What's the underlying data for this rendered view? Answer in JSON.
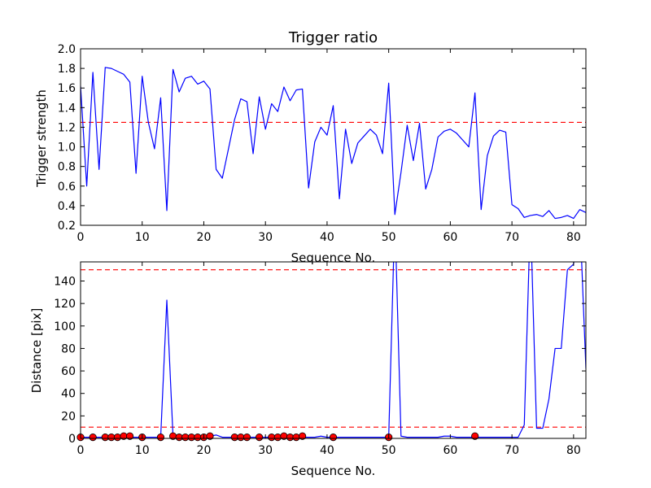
{
  "chart_data": [
    {
      "type": "line",
      "title": "Trigger ratio",
      "xlabel": "Sequence No.",
      "ylabel": "Trigger strength",
      "xlim": [
        0,
        82
      ],
      "ylim": [
        0.2,
        2.0
      ],
      "xticks": [
        0,
        10,
        20,
        30,
        40,
        50,
        60,
        70,
        80
      ],
      "yticks": [
        0.2,
        0.4,
        0.6,
        0.8,
        1.0,
        1.2,
        1.4,
        1.6,
        1.8,
        2.0
      ],
      "xtick_labels": [
        "0",
        "10",
        "20",
        "30",
        "40",
        "50",
        "60",
        "70",
        "80"
      ],
      "ytick_labels": [
        "0.2",
        "0.4",
        "0.6",
        "0.8",
        "1.0",
        "1.2",
        "1.4",
        "1.6",
        "1.8",
        "2.0"
      ],
      "grid": false,
      "series": [
        {
          "color": "#0000ff",
          "x": [
            0,
            1,
            2,
            3,
            4,
            5,
            6,
            7,
            8,
            9,
            10,
            11,
            12,
            13,
            14,
            15,
            16,
            17,
            18,
            19,
            20,
            21,
            22,
            23,
            24,
            25,
            26,
            27,
            28,
            29,
            30,
            31,
            32,
            33,
            34,
            35,
            36,
            37,
            38,
            39,
            40,
            41,
            42,
            43,
            44,
            45,
            46,
            47,
            48,
            49,
            50,
            51,
            52,
            53,
            54,
            55,
            56,
            57,
            58,
            59,
            60,
            61,
            62,
            63,
            64,
            65,
            66,
            67,
            68,
            69,
            70,
            71,
            72,
            73,
            74,
            75,
            76,
            77,
            78,
            79,
            80,
            81,
            82
          ],
          "values": [
            1.62,
            0.6,
            1.76,
            0.77,
            1.81,
            1.8,
            1.77,
            1.74,
            1.66,
            0.73,
            1.72,
            1.25,
            0.98,
            1.5,
            0.35,
            1.79,
            1.56,
            1.7,
            1.72,
            1.64,
            1.67,
            1.59,
            0.77,
            0.68,
            0.98,
            1.28,
            1.49,
            1.46,
            0.93,
            1.51,
            1.18,
            1.44,
            1.36,
            1.61,
            1.47,
            1.58,
            1.59,
            0.58,
            1.05,
            1.2,
            1.12,
            1.42,
            0.47,
            1.18,
            0.83,
            1.04,
            1.11,
            1.18,
            1.12,
            0.93,
            1.65,
            0.31,
            0.74,
            1.22,
            0.86,
            1.24,
            0.57,
            0.77,
            1.1,
            1.16,
            1.18,
            1.14,
            1.07,
            1.0,
            1.55,
            0.36,
            0.91,
            1.11,
            1.17,
            1.15,
            0.41,
            0.37,
            0.28,
            0.3,
            0.31,
            0.29,
            0.35,
            0.27,
            0.28,
            0.3,
            0.27,
            0.36,
            0.33
          ]
        }
      ],
      "hlines": [
        {
          "y": 1.25,
          "color": "#ff0000",
          "style": "dashed"
        }
      ]
    },
    {
      "type": "line",
      "title": "",
      "xlabel": "Sequence No.",
      "ylabel": "Distance [pix]",
      "xlim": [
        0,
        82
      ],
      "ylim": [
        0,
        157
      ],
      "xticks": [
        0,
        10,
        20,
        30,
        40,
        50,
        60,
        70,
        80
      ],
      "yticks": [
        0,
        20,
        40,
        60,
        80,
        100,
        120,
        140
      ],
      "xtick_labels": [
        "0",
        "10",
        "20",
        "30",
        "40",
        "50",
        "60",
        "70",
        "80"
      ],
      "ytick_labels": [
        "0",
        "20",
        "40",
        "60",
        "80",
        "100",
        "120",
        "140"
      ],
      "grid": false,
      "series": [
        {
          "color": "#0000ff",
          "x": [
            0,
            1,
            2,
            3,
            4,
            5,
            6,
            7,
            8,
            9,
            10,
            11,
            12,
            13,
            14,
            15,
            16,
            17,
            18,
            19,
            20,
            21,
            22,
            23,
            24,
            25,
            26,
            27,
            28,
            29,
            30,
            31,
            32,
            33,
            34,
            35,
            36,
            37,
            38,
            39,
            40,
            41,
            42,
            43,
            44,
            45,
            46,
            47,
            48,
            49,
            50,
            51,
            52,
            53,
            54,
            55,
            56,
            57,
            58,
            59,
            60,
            61,
            62,
            63,
            64,
            65,
            66,
            67,
            68,
            69,
            70,
            71,
            72,
            73,
            74,
            75,
            76,
            77,
            78,
            79,
            80,
            81,
            82
          ],
          "values": [
            1,
            1,
            1,
            1,
            1,
            1,
            1,
            1,
            1,
            1,
            1,
            1,
            1,
            1,
            123,
            2,
            1,
            1,
            1,
            1,
            1,
            2,
            3,
            1,
            1,
            1,
            1,
            1,
            1,
            1,
            1,
            1,
            1,
            1,
            1,
            1,
            1,
            1,
            1,
            2,
            1,
            1,
            1,
            1,
            1,
            1,
            1,
            1,
            1,
            1,
            1,
            200,
            2,
            1,
            1,
            1,
            1,
            1,
            1,
            2,
            2,
            1,
            1,
            1,
            1,
            1,
            1,
            1,
            1,
            1,
            1,
            1,
            12,
            200,
            9,
            9,
            35,
            80,
            80,
            150,
            155,
            200,
            62
          ]
        }
      ],
      "markers": {
        "color": "#ff0000",
        "x": [
          0,
          2,
          4,
          5,
          6,
          7,
          8,
          10,
          13,
          15,
          16,
          17,
          18,
          19,
          20,
          21,
          25,
          26,
          27,
          29,
          31,
          32,
          33,
          34,
          35,
          36,
          41,
          50,
          64
        ],
        "values": [
          1,
          1,
          1,
          1,
          1,
          2,
          2,
          1,
          1,
          2,
          1,
          1,
          1,
          1,
          1,
          2,
          1,
          1,
          1,
          1,
          1,
          1,
          2,
          1,
          1,
          2,
          1,
          1,
          2
        ]
      },
      "hlines": [
        {
          "y": 150,
          "color": "#ff0000",
          "style": "dashed"
        },
        {
          "y": 10,
          "color": "#ff0000",
          "style": "dashed"
        }
      ]
    }
  ]
}
